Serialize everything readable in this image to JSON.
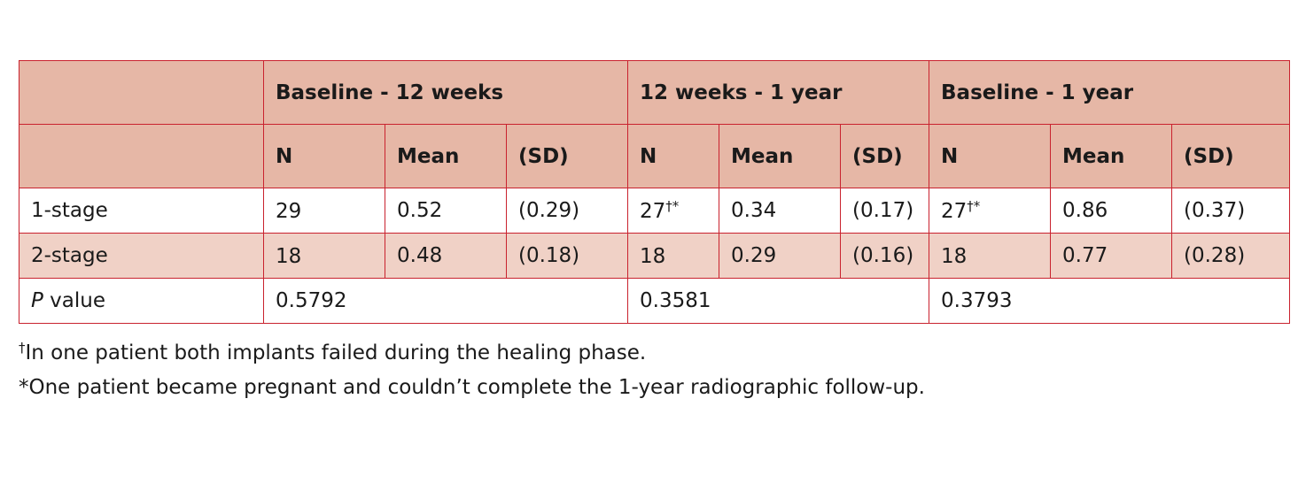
{
  "groups": [
    "Baseline - 12 weeks",
    "12 weeks - 1 year",
    "Baseline - 1 year"
  ],
  "subheaders": [
    "N",
    "Mean",
    "(SD)"
  ],
  "rows": [
    {
      "label": "1-stage",
      "cells": [
        {
          "n": "29",
          "n_mark": "",
          "mean": "0.52",
          "sd": "(0.29)"
        },
        {
          "n": "27",
          "n_mark": "†*",
          "mean": "0.34",
          "sd": "(0.17)"
        },
        {
          "n": "27",
          "n_mark": "†*",
          "mean": "0.86",
          "sd": "(0.37)"
        }
      ]
    },
    {
      "label": "2-stage",
      "cells": [
        {
          "n": "18",
          "n_mark": "",
          "mean": "0.48",
          "sd": "(0.18)"
        },
        {
          "n": "18",
          "n_mark": "",
          "mean": "0.29",
          "sd": "(0.16)"
        },
        {
          "n": "18",
          "n_mark": "",
          "mean": "0.77",
          "sd": "(0.28)"
        }
      ]
    }
  ],
  "pvalue": {
    "label_italic": "P",
    "label_rest": " value",
    "values": [
      "0.5792",
      "0.3581",
      "0.3793"
    ]
  },
  "footnotes": [
    {
      "symbol": "†",
      "text": "In one patient both implants failed during the healing phase."
    },
    {
      "symbol": "",
      "text": "*One patient became pregnant and couldn’t complete the 1-year radiographic follow-up."
    }
  ]
}
